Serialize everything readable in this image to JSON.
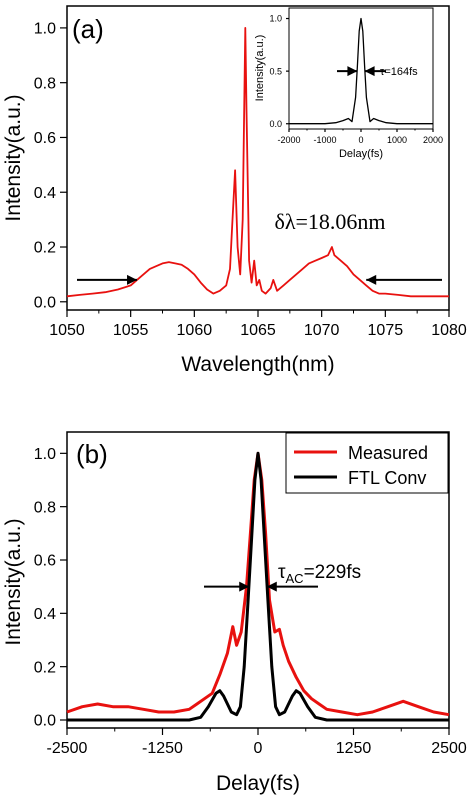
{
  "colors": {
    "measured": "#e8110f",
    "ftl": "#000000",
    "axis": "#000000",
    "background": "#ffffff"
  },
  "chart_data": [
    {
      "id": "a",
      "type": "line",
      "panel_label": "(a)",
      "xlabel": "Wavelength(nm)",
      "ylabel": "Intensity(a.u.)",
      "xlim": [
        1050,
        1080
      ],
      "ylim": [
        -0.03,
        1.08
      ],
      "xticks": [
        "1050",
        "1055",
        "1060",
        "1065",
        "1070",
        "1075",
        "1080"
      ],
      "yticks": [
        "0.0",
        "0.2",
        "0.4",
        "0.6",
        "0.8",
        "1.0"
      ],
      "annotation": "δλ=18.06nm",
      "bandwidth_markers": [
        1055.5,
        1073.5
      ],
      "series": [
        {
          "color": "#e8110f",
          "x": [
            1050,
            1051,
            1052,
            1053,
            1054,
            1055,
            1055.5,
            1056,
            1056.5,
            1057,
            1057.5,
            1058,
            1058.5,
            1059,
            1059.5,
            1060,
            1060.5,
            1061,
            1061.5,
            1062,
            1062.5,
            1062.8,
            1063,
            1063.2,
            1063.4,
            1063.6,
            1063.8,
            1064,
            1064.1,
            1064.3,
            1064.5,
            1064.7,
            1064.9,
            1065.1,
            1065.3,
            1065.6,
            1066,
            1066.2,
            1066.5,
            1067,
            1067.5,
            1068,
            1068.5,
            1069,
            1069.5,
            1070,
            1070.5,
            1070.8,
            1071,
            1071.5,
            1072,
            1072.5,
            1073,
            1073.5,
            1074,
            1074.5,
            1075,
            1076,
            1077,
            1078,
            1079,
            1080
          ],
          "y": [
            0.02,
            0.025,
            0.03,
            0.035,
            0.045,
            0.06,
            0.08,
            0.1,
            0.12,
            0.13,
            0.14,
            0.145,
            0.14,
            0.135,
            0.12,
            0.1,
            0.07,
            0.045,
            0.03,
            0.04,
            0.06,
            0.12,
            0.3,
            0.48,
            0.2,
            0.1,
            0.3,
            1.0,
            0.7,
            0.15,
            0.07,
            0.15,
            0.06,
            0.08,
            0.04,
            0.03,
            0.05,
            0.08,
            0.04,
            0.06,
            0.08,
            0.1,
            0.12,
            0.14,
            0.15,
            0.16,
            0.17,
            0.2,
            0.17,
            0.15,
            0.13,
            0.1,
            0.08,
            0.06,
            0.04,
            0.03,
            0.03,
            0.025,
            0.02,
            0.02,
            0.02,
            0.02
          ]
        }
      ],
      "inset": {
        "type": "line",
        "xlabel": "Delay(fs)",
        "ylabel": "Intensity(a.u.)",
        "xlim": [
          -2000,
          2000
        ],
        "ylim": [
          -0.05,
          1.1
        ],
        "xticks": [
          "-2000",
          "-1000",
          "0",
          "1000",
          "2000"
        ],
        "yticks": [
          "0.0",
          "0.5",
          "1.0"
        ],
        "annotation": "τ=164fs",
        "series": [
          {
            "color": "#000000",
            "x": [
              -2000,
              -1000,
              -700,
              -500,
              -350,
              -250,
              -150,
              -100,
              -50,
              0,
              50,
              100,
              150,
              250,
              350,
              500,
              700,
              1000,
              2000
            ],
            "y": [
              0.0,
              0.0,
              0.01,
              0.03,
              0.05,
              0.02,
              0.25,
              0.55,
              0.88,
              1.0,
              0.88,
              0.55,
              0.25,
              0.02,
              0.05,
              0.03,
              0.01,
              0.0,
              0.0
            ]
          }
        ]
      }
    },
    {
      "id": "b",
      "type": "line",
      "panel_label": "(b)",
      "xlabel": "Delay(fs)",
      "ylabel": "Intensity(a.u.)",
      "xlim": [
        -2500,
        2500
      ],
      "ylim": [
        -0.03,
        1.08
      ],
      "xticks": [
        "-2500",
        "-1250",
        "0",
        "1250",
        "2500"
      ],
      "yticks": [
        "0.0",
        "0.2",
        "0.4",
        "0.6",
        "0.8",
        "1.0"
      ],
      "annotation_main": "τ",
      "annotation_sub": "AC",
      "annotation_value": "=229fs",
      "pulse_markers": [
        -115,
        115
      ],
      "legend_position": "top-right",
      "series": [
        {
          "name": "Measured",
          "color": "#e8110f",
          "x": [
            -2500,
            -2300,
            -2100,
            -1900,
            -1700,
            -1500,
            -1300,
            -1100,
            -900,
            -800,
            -700,
            -600,
            -500,
            -400,
            -330,
            -280,
            -220,
            -150,
            -100,
            -50,
            0,
            50,
            100,
            150,
            220,
            280,
            330,
            400,
            500,
            600,
            700,
            800,
            900,
            1100,
            1300,
            1500,
            1700,
            1900,
            2100,
            2300,
            2500
          ],
          "y": [
            0.03,
            0.05,
            0.06,
            0.05,
            0.05,
            0.04,
            0.03,
            0.03,
            0.04,
            0.06,
            0.08,
            0.1,
            0.17,
            0.25,
            0.35,
            0.28,
            0.33,
            0.5,
            0.7,
            0.9,
            1.0,
            0.9,
            0.7,
            0.45,
            0.33,
            0.34,
            0.28,
            0.22,
            0.16,
            0.11,
            0.08,
            0.06,
            0.04,
            0.03,
            0.02,
            0.03,
            0.05,
            0.07,
            0.05,
            0.03,
            0.02
          ]
        },
        {
          "name": "FTL Conv",
          "color": "#000000",
          "x": [
            -2500,
            -1250,
            -900,
            -750,
            -650,
            -550,
            -500,
            -450,
            -350,
            -280,
            -230,
            -180,
            -130,
            -80,
            -40,
            0,
            40,
            80,
            130,
            180,
            230,
            280,
            350,
            450,
            500,
            550,
            650,
            750,
            900,
            1250,
            2500
          ],
          "y": [
            0.0,
            0.0,
            0.0,
            0.01,
            0.05,
            0.1,
            0.11,
            0.09,
            0.03,
            0.02,
            0.05,
            0.2,
            0.45,
            0.7,
            0.9,
            1.0,
            0.9,
            0.7,
            0.45,
            0.2,
            0.05,
            0.02,
            0.03,
            0.09,
            0.11,
            0.1,
            0.05,
            0.01,
            0.0,
            0.0,
            0.0
          ]
        }
      ]
    }
  ]
}
